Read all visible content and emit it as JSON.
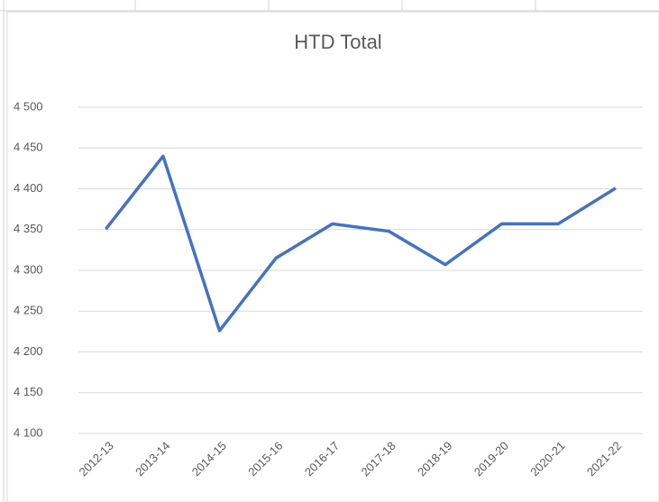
{
  "chart_data": {
    "type": "line",
    "title": "HTD Total",
    "categories": [
      "2012-13",
      "2013-14",
      "2014-15",
      "2015-16",
      "2016-17",
      "2017-18",
      "2018-19",
      "2019-20",
      "2020-21",
      "2021-22"
    ],
    "series": [
      {
        "name": "HTD Total",
        "color": "#4472c4",
        "values": [
          4352,
          4440,
          4226,
          4315,
          4357,
          4348,
          4307,
          4357,
          4357,
          4400
        ]
      }
    ],
    "ylim": [
      4100,
      4500
    ],
    "yticks": [
      {
        "value": 4100,
        "label": "4 100"
      },
      {
        "value": 4150,
        "label": "4 150"
      },
      {
        "value": 4200,
        "label": "4 200"
      },
      {
        "value": 4250,
        "label": "4 250"
      },
      {
        "value": 4300,
        "label": "4 300"
      },
      {
        "value": 4350,
        "label": "4 350"
      },
      {
        "value": 4400,
        "label": "4 400"
      },
      {
        "value": 4450,
        "label": "4 450"
      },
      {
        "value": 4500,
        "label": "4 500"
      }
    ],
    "grid": true
  }
}
